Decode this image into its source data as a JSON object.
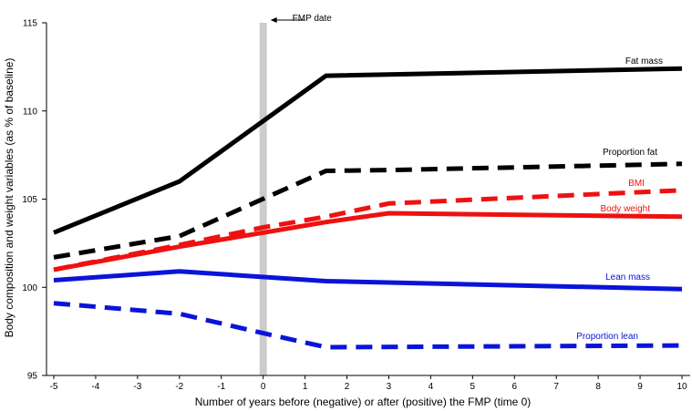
{
  "chart_data": {
    "type": "line",
    "xlabel": "Number of years before (negative) or after (positive) the FMP (time 0)",
    "ylabel": "Body composition and weight variables (as % of baseline)",
    "xlim": [
      -5,
      10
    ],
    "ylim": [
      95,
      115
    ],
    "x_ticks": [
      -5,
      -4,
      -3,
      -2,
      -1,
      0,
      1,
      2,
      3,
      4,
      5,
      6,
      7,
      8,
      9,
      10
    ],
    "y_ticks": [
      95,
      100,
      105,
      110,
      115
    ],
    "annotation": {
      "text": "FMP date",
      "x": 0
    },
    "series": [
      {
        "name": "Fat mass",
        "color": "#000000",
        "dash": "solid",
        "points": [
          [
            -5,
            103.1
          ],
          [
            -2,
            106.0
          ],
          [
            1.5,
            112.0
          ],
          [
            10,
            112.4
          ]
        ]
      },
      {
        "name": "Proportion fat",
        "color": "#000000",
        "dash": "dashed",
        "points": [
          [
            -5,
            101.7
          ],
          [
            -2,
            102.9
          ],
          [
            1.5,
            106.6
          ],
          [
            3,
            106.65
          ],
          [
            10,
            107.0
          ]
        ]
      },
      {
        "name": "BMI",
        "color": "#ee1111",
        "dash": "dashed",
        "points": [
          [
            -5,
            101.0
          ],
          [
            -2,
            102.4
          ],
          [
            0,
            103.4
          ],
          [
            1.5,
            104.0
          ],
          [
            3,
            104.75
          ],
          [
            10,
            105.5
          ]
        ]
      },
      {
        "name": "Body weight",
        "color": "#ee1111",
        "dash": "solid",
        "points": [
          [
            -5,
            101.0
          ],
          [
            -2,
            102.3
          ],
          [
            0,
            103.1
          ],
          [
            1.5,
            103.7
          ],
          [
            3,
            104.2
          ],
          [
            10,
            104.0
          ]
        ]
      },
      {
        "name": "Lean mass",
        "color": "#0a14d8",
        "dash": "solid",
        "points": [
          [
            -5,
            100.4
          ],
          [
            -2,
            100.9
          ],
          [
            1.5,
            100.35
          ],
          [
            10,
            99.9
          ]
        ]
      },
      {
        "name": "Proportion lean",
        "color": "#0a14d8",
        "dash": "dashed",
        "points": [
          [
            -5,
            99.1
          ],
          [
            -2,
            98.5
          ],
          [
            0,
            97.4
          ],
          [
            1.5,
            96.6
          ],
          [
            10,
            96.7
          ]
        ]
      }
    ]
  }
}
